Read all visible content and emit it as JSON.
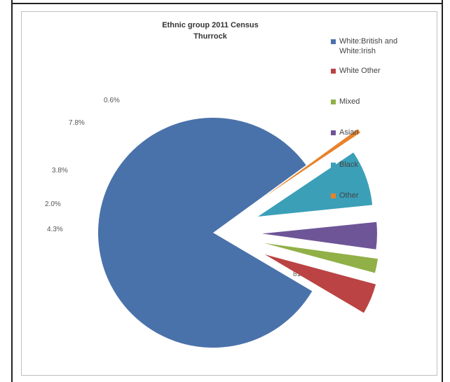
{
  "chart_data": {
    "type": "pie",
    "title": [
      "Ethnic group 2011 Census",
      "Thurrock"
    ],
    "legend_position": "right",
    "exploded": true,
    "slices": [
      {
        "label": "White:British and White:Irish",
        "value": 81.6,
        "value_label": "81.6%",
        "color": "#4a72aa"
      },
      {
        "label": "White Other",
        "value": 4.3,
        "value_label": "4.3%",
        "color": "#bb4343"
      },
      {
        "label": "Mixed",
        "value": 2.0,
        "value_label": "2.0%",
        "color": "#91b047"
      },
      {
        "label": "Asian",
        "value": 3.8,
        "value_label": "3.8%",
        "color": "#6e5597"
      },
      {
        "label": "Black",
        "value": 7.8,
        "value_label": "7.8%",
        "color": "#3b9fb8"
      },
      {
        "label": "Other",
        "value": 0.6,
        "value_label": "0.6%",
        "color": "#e8822a"
      }
    ]
  }
}
